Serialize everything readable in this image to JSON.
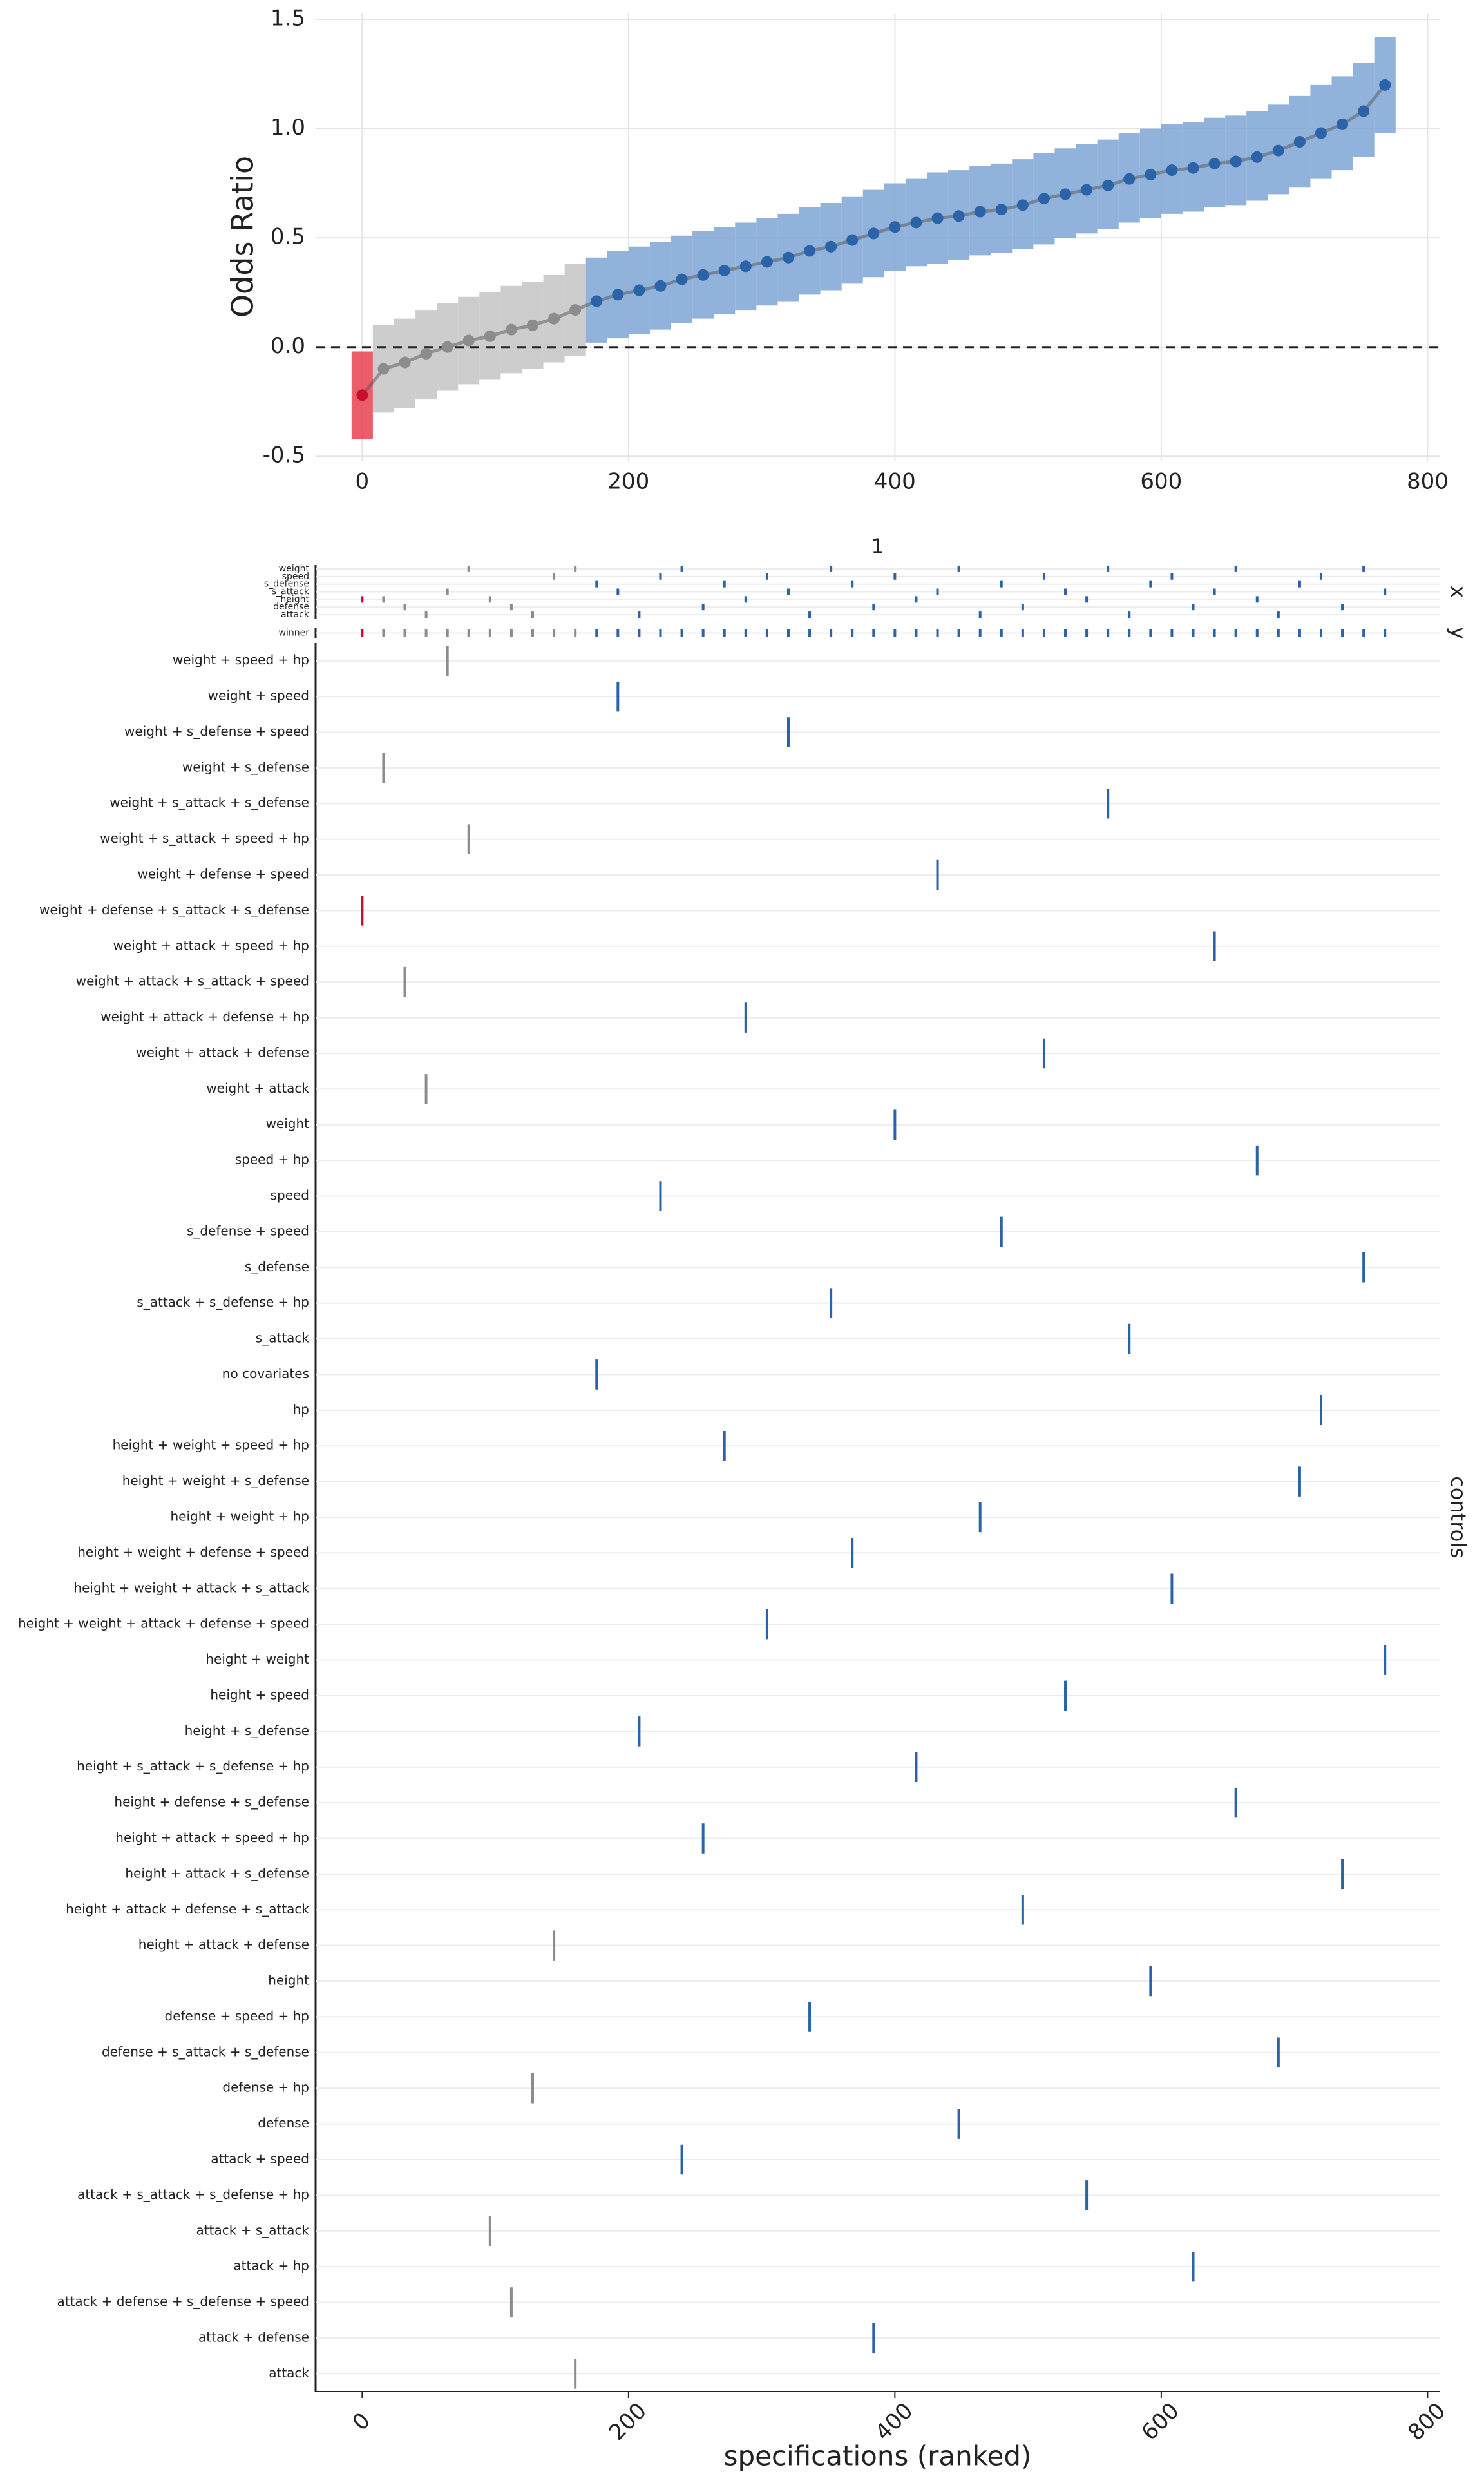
{
  "chart_data": [
    {
      "type": "errorbar",
      "ylabel": "Odds Ratio",
      "x": [
        0,
        16,
        32,
        48,
        64,
        80,
        96,
        112,
        128,
        144,
        160,
        176,
        192,
        208,
        224,
        240,
        256,
        272,
        288,
        304,
        320,
        336,
        352,
        368,
        384,
        400,
        416,
        432,
        448,
        464,
        480,
        496,
        512,
        528,
        544,
        560,
        576,
        592,
        608,
        624,
        640,
        656,
        672,
        688,
        704,
        720,
        736,
        752,
        768
      ],
      "values": [
        -0.22,
        -0.1,
        -0.07,
        -0.03,
        0,
        0.03,
        0.05,
        0.08,
        0.1,
        0.13,
        0.17,
        0.21,
        0.24,
        0.26,
        0.28,
        0.31,
        0.33,
        0.35,
        0.37,
        0.39,
        0.41,
        0.44,
        0.46,
        0.49,
        0.52,
        0.55,
        0.57,
        0.59,
        0.6,
        0.62,
        0.63,
        0.65,
        0.68,
        0.7,
        0.72,
        0.74,
        0.77,
        0.79,
        0.81,
        0.82,
        0.84,
        0.85,
        0.87,
        0.9,
        0.94,
        0.98,
        1.02,
        1.08,
        1.2
      ],
      "lower": [
        -0.42,
        -0.3,
        -0.28,
        -0.24,
        -0.2,
        -0.17,
        -0.15,
        -0.12,
        -0.1,
        -0.07,
        -0.04,
        0.02,
        0.04,
        0.06,
        0.08,
        0.11,
        0.13,
        0.15,
        0.17,
        0.19,
        0.21,
        0.24,
        0.26,
        0.29,
        0.32,
        0.35,
        0.37,
        0.38,
        0.4,
        0.42,
        0.43,
        0.45,
        0.47,
        0.5,
        0.52,
        0.54,
        0.57,
        0.59,
        0.61,
        0.62,
        0.64,
        0.65,
        0.67,
        0.7,
        0.73,
        0.77,
        0.81,
        0.87,
        0.98
      ],
      "upper": [
        -0.02,
        0.1,
        0.13,
        0.17,
        0.2,
        0.23,
        0.25,
        0.28,
        0.3,
        0.33,
        0.38,
        0.41,
        0.44,
        0.46,
        0.48,
        0.51,
        0.53,
        0.55,
        0.57,
        0.59,
        0.61,
        0.64,
        0.66,
        0.69,
        0.72,
        0.75,
        0.77,
        0.8,
        0.81,
        0.83,
        0.84,
        0.86,
        0.89,
        0.91,
        0.93,
        0.95,
        0.98,
        1.0,
        1.02,
        1.03,
        1.05,
        1.06,
        1.08,
        1.11,
        1.15,
        1.2,
        1.24,
        1.3,
        1.42
      ],
      "groups": [
        "neg",
        "ns",
        "ns",
        "ns",
        "ns",
        "ns",
        "ns",
        "ns",
        "ns",
        "ns",
        "ns",
        "pos",
        "pos",
        "pos",
        "pos",
        "pos",
        "pos",
        "pos",
        "pos",
        "pos",
        "pos",
        "pos",
        "pos",
        "pos",
        "pos",
        "pos",
        "pos",
        "pos",
        "pos",
        "pos",
        "pos",
        "pos",
        "pos",
        "pos",
        "pos",
        "pos",
        "pos",
        "pos",
        "pos",
        "pos",
        "pos",
        "pos",
        "pos",
        "pos",
        "pos",
        "pos",
        "pos",
        "pos",
        "pos"
      ],
      "palette": {
        "neg": {
          "point": "#c8102e",
          "bar": "#e8424f"
        },
        "ns": {
          "point": "#8c8c8c",
          "bar": "#c4c4c4"
        },
        "pos": {
          "point": "#2a63a8",
          "bar": "#7ea4d3"
        }
      },
      "xlim": [
        -35,
        809
      ],
      "xticks": [
        0,
        200,
        400,
        600,
        800
      ],
      "ylim": [
        -0.52,
        1.53
      ],
      "yticks": [
        {
          "value": -0.5,
          "label": "-0.5"
        },
        {
          "value": 0,
          "label": "0.0"
        },
        {
          "value": 0.5,
          "label": "0.5"
        },
        {
          "value": 1,
          "label": "1.0"
        },
        {
          "value": 1.5,
          "label": "1.5"
        }
      ],
      "hline": 0,
      "grid": true
    },
    {
      "type": "specpanel",
      "strip": "1",
      "xlabel": "specifications (ranked)",
      "xlim": [
        -35,
        809
      ],
      "xticks": [
        0,
        200,
        400,
        600,
        800
      ],
      "facets": [
        {
          "label": "x",
          "rows": [
            "weight",
            "speed",
            "s_defense",
            "s_attack",
            "height",
            "defense",
            "attack"
          ],
          "assign": [
            4,
            4,
            5,
            6,
            3,
            0,
            4,
            5,
            6,
            1,
            0,
            2,
            3,
            6,
            1,
            0,
            5,
            2,
            4,
            1,
            3,
            6,
            0,
            2,
            5,
            1,
            4,
            3,
            0,
            6,
            2,
            5,
            1,
            3,
            4,
            0,
            6,
            2,
            1,
            5,
            3,
            0,
            4,
            6,
            2,
            1,
            5,
            0,
            3
          ]
        },
        {
          "label": "y",
          "rows": [
            "winner"
          ],
          "assign": [
            0,
            0,
            0,
            0,
            0,
            0,
            0,
            0,
            0,
            0,
            0,
            0,
            0,
            0,
            0,
            0,
            0,
            0,
            0,
            0,
            0,
            0,
            0,
            0,
            0,
            0,
            0,
            0,
            0,
            0,
            0,
            0,
            0,
            0,
            0,
            0,
            0,
            0,
            0,
            0,
            0,
            0,
            0,
            0,
            0,
            0,
            0,
            0,
            0
          ]
        },
        {
          "label": "controls",
          "rows": [
            "weight + speed + hp",
            "weight + speed",
            "weight + s_defense + speed",
            "weight + s_defense",
            "weight + s_attack + s_defense",
            "weight + s_attack + speed + hp",
            "weight + defense + speed",
            "weight + defense + s_attack + s_defense",
            "weight + attack + speed + hp",
            "weight + attack + s_attack + speed",
            "weight + attack + defense + hp",
            "weight + attack + defense",
            "weight + attack",
            "weight",
            "speed + hp",
            "speed",
            "s_defense + speed",
            "s_defense",
            "s_attack + s_defense + hp",
            "s_attack",
            "no covariates",
            "hp",
            "height + weight + speed + hp",
            "height + weight + s_defense",
            "height + weight + hp",
            "height + weight + defense + speed",
            "height + weight + attack + s_attack",
            "height + weight + attack + defense + speed",
            "height + weight",
            "height + speed",
            "height + s_defense",
            "height + s_attack + s_defense + hp",
            "height + defense + s_defense",
            "height + attack + speed + hp",
            "height + attack + s_defense",
            "height + attack + defense + s_attack",
            "height + attack + defense",
            "height",
            "defense + speed + hp",
            "defense + s_attack + s_defense",
            "defense + hp",
            "defense",
            "attack + speed",
            "attack + s_attack + s_defense + hp",
            "attack + s_attack",
            "attack + hp",
            "attack + defense + s_defense + speed",
            "attack + defense",
            "attack"
          ],
          "assign": [
            7,
            3,
            9,
            12,
            0,
            5,
            44,
            46,
            40,
            36,
            48,
            20,
            1,
            30,
            15,
            42,
            33,
            22,
            10,
            27,
            2,
            38,
            18,
            25,
            47,
            13,
            31,
            6,
            41,
            24,
            16,
            35,
            11,
            29,
            43,
            4,
            19,
            37,
            26,
            45,
            8,
            32,
            14,
            39,
            23,
            21,
            34,
            17,
            28
          ]
        }
      ]
    }
  ]
}
